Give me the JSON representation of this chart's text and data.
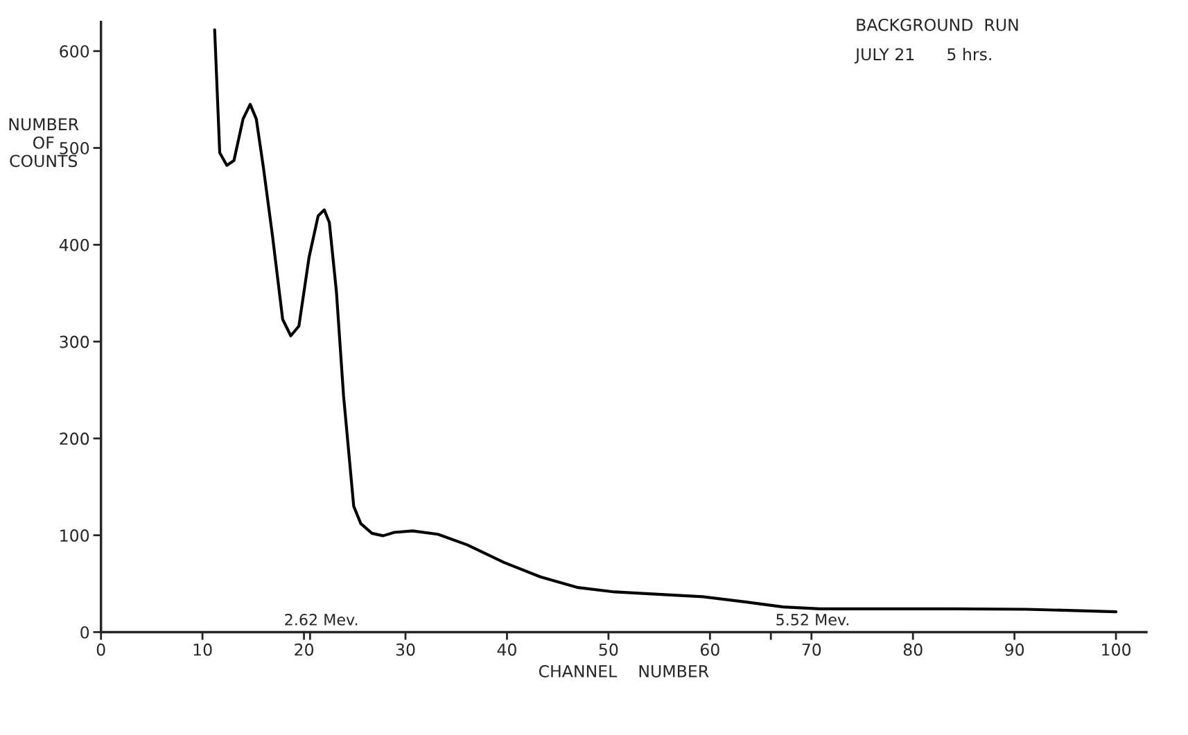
{
  "chart_data": {
    "type": "line",
    "title": "BACKGROUND  RUN",
    "subtitle": "JULY 21      5 hrs.",
    "xlabel": "CHANNEL    NUMBER",
    "ylabel": "NUMBER\nOF\nCOUNTS",
    "series": [
      {
        "color": "#000000",
        "x": [
          11.2,
          11.7,
          12.4,
          13.1,
          14.0,
          14.7,
          15.3,
          16.0,
          16.9,
          17.9,
          18.7,
          19.5,
          20.5,
          21.4,
          22.0,
          22.5,
          23.2,
          23.9,
          24.9,
          25.6,
          26.7,
          27.8,
          28.9,
          30.7,
          33.2,
          36.1,
          39.7,
          43.3,
          47.0,
          50.6,
          54.9,
          59.3,
          63.6,
          67.2,
          70.8,
          76.6,
          83.9,
          91.1,
          100
        ],
        "values": [
          622,
          495,
          482,
          487,
          530,
          545,
          530,
          480,
          409,
          323,
          306,
          316,
          387,
          430,
          436,
          423,
          351,
          244,
          130,
          112,
          102,
          99.5,
          103,
          104.5,
          101,
          90,
          72,
          57,
          46,
          41.5,
          39,
          36.5,
          31,
          26,
          24,
          24,
          24,
          23.6,
          21
        ]
      }
    ],
    "annotations": [
      "2.62 Mev.",
      "5.52 Mev."
    ],
    "xlim": [
      0,
      103
    ],
    "ylim": [
      0,
      630
    ],
    "xticks": [
      0,
      10,
      20,
      {
        "value": 20.6,
        "label": null
      },
      30,
      40,
      50,
      60,
      {
        "value": 66,
        "label": null
      },
      70,
      80,
      90,
      100
    ],
    "yticks": [
      0,
      100,
      200,
      300,
      400,
      500,
      600
    ],
    "grid": false,
    "marker": "none",
    "line_style": "solid"
  }
}
